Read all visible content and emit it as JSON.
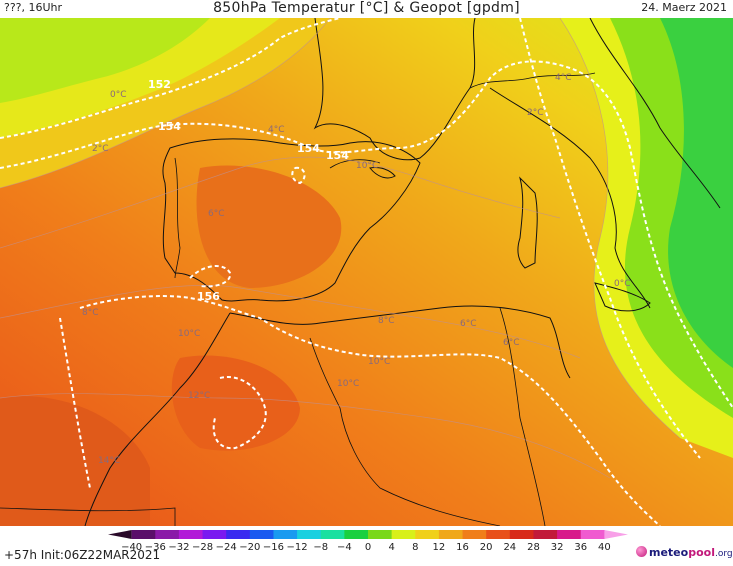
{
  "header": {
    "valid_time": "???, 16Uhr",
    "title": "850hPa Temperatur [°C] & Geopot [gpdm]",
    "date": "24. Maerz 2021"
  },
  "footer": {
    "run_info": "+57h Init:06Z22MAR2021",
    "scale_ticks": [
      "−40",
      "−36",
      "−32",
      "−28",
      "−24",
      "−20",
      "−16",
      "−12",
      "−8",
      "−4",
      "0",
      "4",
      "8",
      "12",
      "16",
      "20",
      "24",
      "28",
      "32",
      "36",
      "40"
    ],
    "scale_colors": [
      "#2a0a2a",
      "#5a0f6a",
      "#8a1aa8",
      "#b21ad8",
      "#7a1af0",
      "#3a2af0",
      "#1a5af0",
      "#1a9af0",
      "#1ad0e0",
      "#1ae0a0",
      "#1ad040",
      "#7ad81a",
      "#d8f01a",
      "#f0d01a",
      "#f0a81a",
      "#f07e1a",
      "#e8501a",
      "#d82a1a",
      "#c21a3a",
      "#d81a8a",
      "#f05ad0",
      "#f8a0e8"
    ]
  },
  "logo": {
    "part1": "meteo",
    "part2": "pool",
    "part3": ".org"
  },
  "map": {
    "geopotential_labels": [
      "152",
      "154",
      "154",
      "154",
      "156"
    ],
    "isotherm_labels": [
      "0°C",
      "2°C",
      "4°C",
      "6°C",
      "8°C",
      "10°C",
      "10°C",
      "12°C",
      "14°C",
      "10°C",
      "8°C",
      "6°C",
      "4°C",
      "2°C",
      "0°C",
      "10°C",
      "6°C"
    ]
  }
}
